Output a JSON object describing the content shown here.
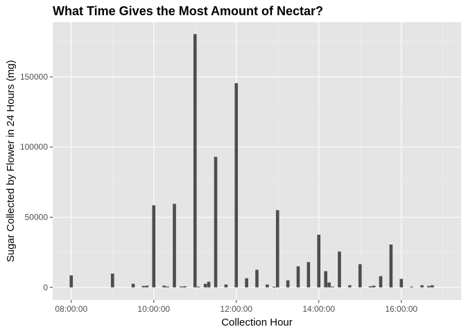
{
  "chart_data": {
    "type": "bar",
    "title": "What Time Gives the Most Amount of Nectar?",
    "xlabel": "Collection Hour",
    "ylabel": "Sugar Collected by Flower in 24 Hours (mg)",
    "x_unit": "hours",
    "xlim": [
      7.55,
      17.45
    ],
    "ylim": [
      -9000,
      189000
    ],
    "x_ticks": [
      {
        "value": 8,
        "label": "08:00:00"
      },
      {
        "value": 10,
        "label": "10:00:00"
      },
      {
        "value": 12,
        "label": "12:00:00"
      },
      {
        "value": 14,
        "label": "14:00:00"
      },
      {
        "value": 16,
        "label": "16:00:00"
      }
    ],
    "y_ticks": [
      {
        "value": 0,
        "label": "0"
      },
      {
        "value": 50000,
        "label": "50000"
      },
      {
        "value": 100000,
        "label": "100000"
      },
      {
        "value": 150000,
        "label": "150000"
      }
    ],
    "grid": true,
    "legend": "none",
    "colors": {
      "panel": "#E5E5E5",
      "grid_major": "#FFFFFF",
      "grid_minor": "#F2F2F2",
      "bar": "#4D4D4D",
      "tick_text": "#4D4D4D",
      "tick_mark": "#333333"
    },
    "series": [
      {
        "times": [
          "08:00:00",
          "09:00:00",
          "09:30:00",
          "09:45:00",
          "09:50:00",
          "10:00:00",
          "10:15:00",
          "10:20:00",
          "10:30:00",
          "10:40:00",
          "10:45:00",
          "11:00:00",
          "11:05:00",
          "11:15:00",
          "11:20:00",
          "11:30:00",
          "11:45:00",
          "12:00:00",
          "12:15:00",
          "12:30:00",
          "12:45:00",
          "12:55:00",
          "13:00:00",
          "13:15:00",
          "13:30:00",
          "13:45:00",
          "14:00:00",
          "14:10:00",
          "14:15:00",
          "14:20:00",
          "14:30:00",
          "14:45:00",
          "15:00:00",
          "15:15:00",
          "15:20:00",
          "15:30:00",
          "15:45:00",
          "16:00:00",
          "16:15:00",
          "16:30:00",
          "16:40:00",
          "16:45:00"
        ],
        "x": [
          8.0,
          9.0,
          9.5,
          9.75,
          9.833,
          10.0,
          10.25,
          10.333,
          10.5,
          10.667,
          10.75,
          11.0,
          11.083,
          11.25,
          11.333,
          11.5,
          11.75,
          12.0,
          12.25,
          12.5,
          12.75,
          12.917,
          13.0,
          13.25,
          13.5,
          13.75,
          14.0,
          14.167,
          14.25,
          14.333,
          14.5,
          14.75,
          15.0,
          15.25,
          15.333,
          15.5,
          15.75,
          16.0,
          16.25,
          16.5,
          16.667,
          16.75
        ],
        "values": [
          8500,
          9800,
          2500,
          1000,
          1200,
          58500,
          1200,
          600,
          59500,
          600,
          800,
          180500,
          500,
          2500,
          4000,
          93000,
          2000,
          145500,
          6500,
          12500,
          2000,
          500,
          55000,
          5000,
          15000,
          18000,
          37500,
          11500,
          3500,
          500,
          25500,
          1500,
          16500,
          800,
          1200,
          8000,
          30500,
          6000,
          500,
          1500,
          1000,
          1500
        ]
      }
    ]
  }
}
